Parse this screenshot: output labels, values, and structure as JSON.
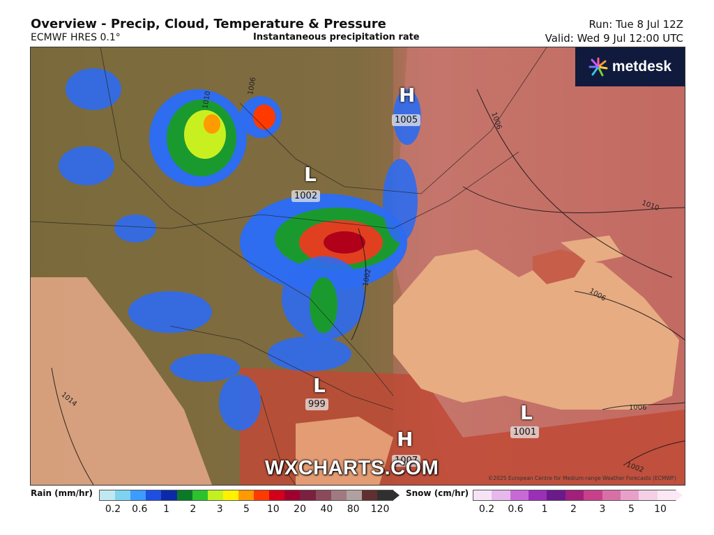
{
  "header": {
    "title": "Overview - Precip, Cloud, Temperature & Pressure",
    "model": "ECMWF HRES 0.1°",
    "product": "Instantaneous precipitation rate",
    "run": "Run: Tue 8 Jul 12Z",
    "valid": "Valid: Wed 9 Jul 12:00 UTC"
  },
  "logo": {
    "text": "metdesk",
    "icon": "starburst-icon"
  },
  "pressure_centres": [
    {
      "type": "H",
      "value": "1005"
    },
    {
      "type": "L",
      "value": "1002"
    },
    {
      "type": "L",
      "value": "999"
    },
    {
      "type": "L",
      "value": "1001"
    },
    {
      "type": "H",
      "value": "1007"
    }
  ],
  "isobar_labels": [
    "1010",
    "1006",
    "1006",
    "1002",
    "1010",
    "1006",
    "1006",
    "1014",
    "1002"
  ],
  "watermark": "WXCHARTS.COM",
  "copyright": "©2025 European Centre for Medium-range Weather Forecasts (ECMWF)",
  "legend": {
    "rain": {
      "title": "Rain (mm/hr)",
      "ticks": [
        "0.2",
        "0.6",
        "1",
        "2",
        "3",
        "5",
        "10",
        "20",
        "40",
        "80",
        "120"
      ],
      "colors": [
        "#bfe8f0",
        "#7fd2f0",
        "#3c9cff",
        "#1f4fe0",
        "#0c2aa8",
        "#0a7a28",
        "#2cc22c",
        "#c4f020",
        "#fff200",
        "#ff9a00",
        "#ff3a00",
        "#d2001a",
        "#a00030",
        "#7a2040",
        "#8a4a5a",
        "#a07a80",
        "#b0a0a0",
        "#603030",
        "#303030"
      ]
    },
    "snow": {
      "title": "Snow (cm/hr)",
      "ticks": [
        "0.2",
        "0.6",
        "1",
        "2",
        "3",
        "5",
        "10"
      ],
      "colors": [
        "#f6e4f6",
        "#e6b8ec",
        "#c76ad6",
        "#9b2fb8",
        "#6a1a8a",
        "#a0207a",
        "#c8408a",
        "#d870a8",
        "#e8a0c8",
        "#f4d0e4",
        "#fce8f4"
      ]
    }
  },
  "colors": {
    "land": "#7a6a3a",
    "sea_hot": "#e8a87a",
    "warm_land": "#c86a50",
    "hot_land": "#b84030"
  }
}
